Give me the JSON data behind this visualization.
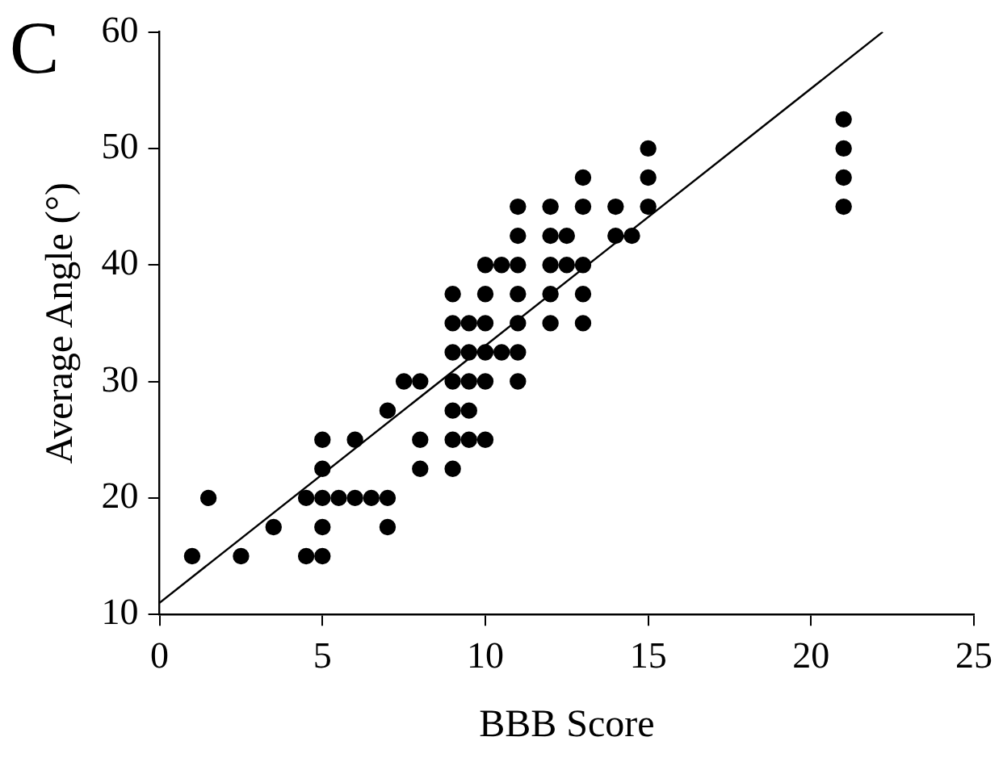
{
  "chart_data": {
    "type": "scatter",
    "xlabel": "BBB Score",
    "ylabel": "Average Angle (°)",
    "annotations": [
      "C"
    ],
    "xlim": [
      0,
      25
    ],
    "xticks": [
      0,
      5,
      10,
      15,
      20,
      25
    ],
    "ylim": [
      10,
      60
    ],
    "yticks": [
      10,
      20,
      30,
      40,
      50,
      60
    ],
    "grid": false,
    "legend": false,
    "marker": "circle",
    "series": [
      {
        "type": "scatter",
        "color": "#000000",
        "x": [
          1,
          2.5,
          4.5,
          5,
          3.5,
          5,
          7,
          1.5,
          4.5,
          5,
          5.5,
          6,
          6.5,
          7,
          5,
          8,
          9,
          5,
          6,
          8,
          9,
          9.5,
          10,
          7,
          9,
          9.5,
          7.5,
          8,
          9,
          9.5,
          10,
          11,
          9,
          9.5,
          10,
          10.5,
          11,
          9,
          9.5,
          10,
          11,
          12,
          13,
          9,
          10,
          11,
          12,
          13,
          10,
          10.5,
          11,
          12,
          12.5,
          13,
          11,
          12,
          12.5,
          14,
          14.5,
          11,
          12,
          13,
          14,
          15,
          13,
          15,
          15,
          21,
          21,
          21,
          21
        ],
        "values": [
          15,
          15,
          15,
          15,
          17.5,
          17.5,
          17.5,
          20,
          20,
          20,
          20,
          20,
          20,
          20,
          22.5,
          22.5,
          22.5,
          25,
          25,
          25,
          25,
          25,
          25,
          27.5,
          27.5,
          27.5,
          30,
          30,
          30,
          30,
          30,
          30,
          32.5,
          32.5,
          32.5,
          32.5,
          32.5,
          35,
          35,
          35,
          35,
          35,
          35,
          37.5,
          37.5,
          37.5,
          37.5,
          37.5,
          40,
          40,
          40,
          40,
          40,
          40,
          42.5,
          42.5,
          42.5,
          42.5,
          42.5,
          45,
          45,
          45,
          45,
          45,
          47.5,
          47.5,
          50,
          45,
          47.5,
          50,
          52.5
        ]
      },
      {
        "type": "line",
        "color": "#000000",
        "line_style": "solid",
        "marker": "none",
        "x": [
          0,
          22.2
        ],
        "values": [
          11,
          60
        ]
      }
    ]
  }
}
